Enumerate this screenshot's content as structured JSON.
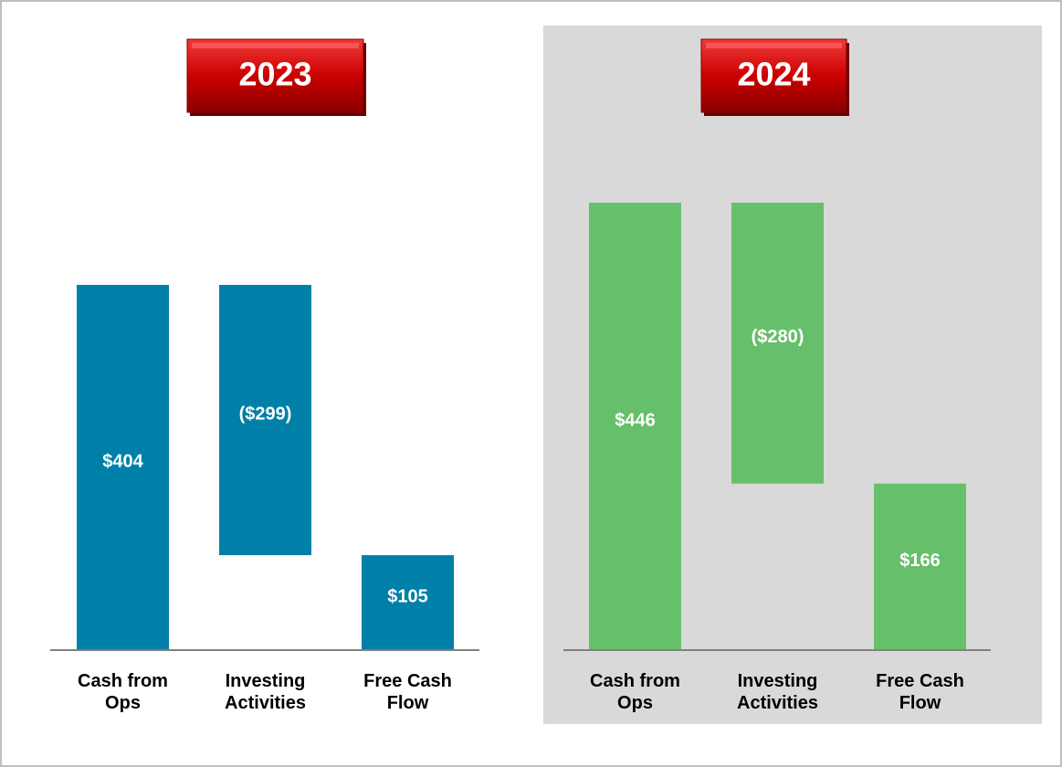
{
  "chart_data": [
    {
      "type": "waterfall",
      "title": "2023",
      "categories": [
        "Cash from Ops",
        "Investing Activities",
        "Free Cash Flow"
      ],
      "values": [
        404,
        -299,
        105
      ],
      "value_labels": [
        "$404",
        "($299)",
        "$105"
      ],
      "is_total": [
        false,
        false,
        true
      ],
      "color": "#0080a8"
    },
    {
      "type": "waterfall",
      "title": "2024",
      "categories": [
        "Cash from Ops",
        "Investing Activities",
        "Free Cash Flow"
      ],
      "values": [
        446,
        -280,
        166
      ],
      "value_labels": [
        "$446",
        "($280)",
        "$166"
      ],
      "is_total": [
        false,
        false,
        true
      ],
      "color": "#66bf6a"
    }
  ]
}
